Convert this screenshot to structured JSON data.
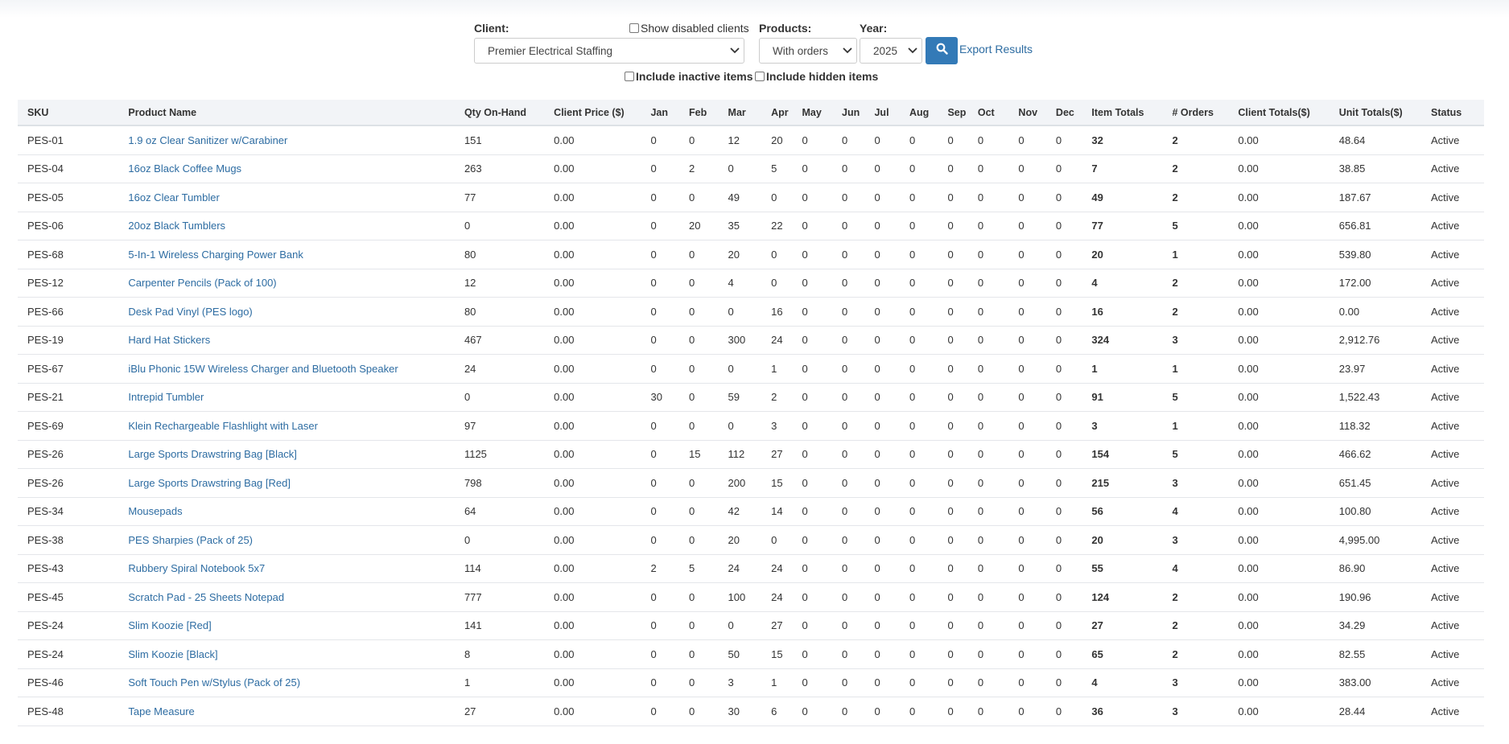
{
  "filters": {
    "client_label": "Client:",
    "client_value": "Premier Electrical Staffing",
    "show_disabled_label": "Show disabled clients",
    "products_label": "Products:",
    "products_value": "With orders",
    "year_label": "Year:",
    "year_value": "2025",
    "export_label": "Export Results",
    "include_inactive_label": "Include inactive items",
    "include_hidden_label": "Include hidden items"
  },
  "table": {
    "headers": {
      "sku": "SKU",
      "name": "Product Name",
      "qty": "Qty On-Hand",
      "price": "Client Price ($)",
      "jan": "Jan",
      "feb": "Feb",
      "mar": "Mar",
      "apr": "Apr",
      "may": "May",
      "jun": "Jun",
      "jul": "Jul",
      "aug": "Aug",
      "sep": "Sep",
      "oct": "Oct",
      "nov": "Nov",
      "dec": "Dec",
      "item_totals": "Item Totals",
      "orders": "# Orders",
      "client_totals": "Client Totals($)",
      "unit_totals": "Unit Totals($)",
      "status": "Status"
    },
    "rows": [
      {
        "sku": "PES-01",
        "name": "1.9 oz Clear Sanitizer w/Carabiner",
        "qty": "151",
        "price": "0.00",
        "jan": "0",
        "feb": "0",
        "mar": "12",
        "apr": "20",
        "may": "0",
        "jun": "0",
        "jul": "0",
        "aug": "0",
        "sep": "0",
        "oct": "0",
        "nov": "0",
        "dec": "0",
        "item_totals": "32",
        "orders": "2",
        "client_totals": "0.00",
        "unit_totals": "48.64",
        "status": "Active"
      },
      {
        "sku": "PES-04",
        "name": "16oz Black Coffee Mugs",
        "qty": "263",
        "price": "0.00",
        "jan": "0",
        "feb": "2",
        "mar": "0",
        "apr": "5",
        "may": "0",
        "jun": "0",
        "jul": "0",
        "aug": "0",
        "sep": "0",
        "oct": "0",
        "nov": "0",
        "dec": "0",
        "item_totals": "7",
        "orders": "2",
        "client_totals": "0.00",
        "unit_totals": "38.85",
        "status": "Active"
      },
      {
        "sku": "PES-05",
        "name": "16oz Clear Tumbler",
        "qty": "77",
        "price": "0.00",
        "jan": "0",
        "feb": "0",
        "mar": "49",
        "apr": "0",
        "may": "0",
        "jun": "0",
        "jul": "0",
        "aug": "0",
        "sep": "0",
        "oct": "0",
        "nov": "0",
        "dec": "0",
        "item_totals": "49",
        "orders": "2",
        "client_totals": "0.00",
        "unit_totals": "187.67",
        "status": "Active"
      },
      {
        "sku": "PES-06",
        "name": "20oz Black Tumblers",
        "qty": "0",
        "price": "0.00",
        "jan": "0",
        "feb": "20",
        "mar": "35",
        "apr": "22",
        "may": "0",
        "jun": "0",
        "jul": "0",
        "aug": "0",
        "sep": "0",
        "oct": "0",
        "nov": "0",
        "dec": "0",
        "item_totals": "77",
        "orders": "5",
        "client_totals": "0.00",
        "unit_totals": "656.81",
        "status": "Active"
      },
      {
        "sku": "PES-68",
        "name": "5-In-1 Wireless Charging Power Bank",
        "qty": "80",
        "price": "0.00",
        "jan": "0",
        "feb": "0",
        "mar": "20",
        "apr": "0",
        "may": "0",
        "jun": "0",
        "jul": "0",
        "aug": "0",
        "sep": "0",
        "oct": "0",
        "nov": "0",
        "dec": "0",
        "item_totals": "20",
        "orders": "1",
        "client_totals": "0.00",
        "unit_totals": "539.80",
        "status": "Active"
      },
      {
        "sku": "PES-12",
        "name": "Carpenter Pencils (Pack of 100)",
        "qty": "12",
        "price": "0.00",
        "jan": "0",
        "feb": "0",
        "mar": "4",
        "apr": "0",
        "may": "0",
        "jun": "0",
        "jul": "0",
        "aug": "0",
        "sep": "0",
        "oct": "0",
        "nov": "0",
        "dec": "0",
        "item_totals": "4",
        "orders": "2",
        "client_totals": "0.00",
        "unit_totals": "172.00",
        "status": "Active"
      },
      {
        "sku": "PES-66",
        "name": "Desk Pad Vinyl (PES logo)",
        "qty": "80",
        "price": "0.00",
        "jan": "0",
        "feb": "0",
        "mar": "0",
        "apr": "16",
        "may": "0",
        "jun": "0",
        "jul": "0",
        "aug": "0",
        "sep": "0",
        "oct": "0",
        "nov": "0",
        "dec": "0",
        "item_totals": "16",
        "orders": "2",
        "client_totals": "0.00",
        "unit_totals": "0.00",
        "status": "Active"
      },
      {
        "sku": "PES-19",
        "name": "Hard Hat Stickers",
        "qty": "467",
        "price": "0.00",
        "jan": "0",
        "feb": "0",
        "mar": "300",
        "apr": "24",
        "may": "0",
        "jun": "0",
        "jul": "0",
        "aug": "0",
        "sep": "0",
        "oct": "0",
        "nov": "0",
        "dec": "0",
        "item_totals": "324",
        "orders": "3",
        "client_totals": "0.00",
        "unit_totals": "2,912.76",
        "status": "Active"
      },
      {
        "sku": "PES-67",
        "name": "iBlu Phonic 15W Wireless Charger and Bluetooth Speaker",
        "qty": "24",
        "price": "0.00",
        "jan": "0",
        "feb": "0",
        "mar": "0",
        "apr": "1",
        "may": "0",
        "jun": "0",
        "jul": "0",
        "aug": "0",
        "sep": "0",
        "oct": "0",
        "nov": "0",
        "dec": "0",
        "item_totals": "1",
        "orders": "1",
        "client_totals": "0.00",
        "unit_totals": "23.97",
        "status": "Active"
      },
      {
        "sku": "PES-21",
        "name": "Intrepid Tumbler",
        "qty": "0",
        "price": "0.00",
        "jan": "30",
        "feb": "0",
        "mar": "59",
        "apr": "2",
        "may": "0",
        "jun": "0",
        "jul": "0",
        "aug": "0",
        "sep": "0",
        "oct": "0",
        "nov": "0",
        "dec": "0",
        "item_totals": "91",
        "orders": "5",
        "client_totals": "0.00",
        "unit_totals": "1,522.43",
        "status": "Active"
      },
      {
        "sku": "PES-69",
        "name": "Klein Rechargeable Flashlight with Laser",
        "qty": "97",
        "price": "0.00",
        "jan": "0",
        "feb": "0",
        "mar": "0",
        "apr": "3",
        "may": "0",
        "jun": "0",
        "jul": "0",
        "aug": "0",
        "sep": "0",
        "oct": "0",
        "nov": "0",
        "dec": "0",
        "item_totals": "3",
        "orders": "1",
        "client_totals": "0.00",
        "unit_totals": "118.32",
        "status": "Active"
      },
      {
        "sku": "PES-26",
        "name": "Large Sports Drawstring Bag [Black]",
        "qty": "1125",
        "price": "0.00",
        "jan": "0",
        "feb": "15",
        "mar": "112",
        "apr": "27",
        "may": "0",
        "jun": "0",
        "jul": "0",
        "aug": "0",
        "sep": "0",
        "oct": "0",
        "nov": "0",
        "dec": "0",
        "item_totals": "154",
        "orders": "5",
        "client_totals": "0.00",
        "unit_totals": "466.62",
        "status": "Active"
      },
      {
        "sku": "PES-26",
        "name": "Large Sports Drawstring Bag [Red]",
        "qty": "798",
        "price": "0.00",
        "jan": "0",
        "feb": "0",
        "mar": "200",
        "apr": "15",
        "may": "0",
        "jun": "0",
        "jul": "0",
        "aug": "0",
        "sep": "0",
        "oct": "0",
        "nov": "0",
        "dec": "0",
        "item_totals": "215",
        "orders": "3",
        "client_totals": "0.00",
        "unit_totals": "651.45",
        "status": "Active"
      },
      {
        "sku": "PES-34",
        "name": "Mousepads",
        "qty": "64",
        "price": "0.00",
        "jan": "0",
        "feb": "0",
        "mar": "42",
        "apr": "14",
        "may": "0",
        "jun": "0",
        "jul": "0",
        "aug": "0",
        "sep": "0",
        "oct": "0",
        "nov": "0",
        "dec": "0",
        "item_totals": "56",
        "orders": "4",
        "client_totals": "0.00",
        "unit_totals": "100.80",
        "status": "Active"
      },
      {
        "sku": "PES-38",
        "name": "PES Sharpies (Pack of 25)",
        "qty": "0",
        "price": "0.00",
        "jan": "0",
        "feb": "0",
        "mar": "20",
        "apr": "0",
        "may": "0",
        "jun": "0",
        "jul": "0",
        "aug": "0",
        "sep": "0",
        "oct": "0",
        "nov": "0",
        "dec": "0",
        "item_totals": "20",
        "orders": "3",
        "client_totals": "0.00",
        "unit_totals": "4,995.00",
        "status": "Active"
      },
      {
        "sku": "PES-43",
        "name": "Rubbery Spiral Notebook 5x7",
        "qty": "114",
        "price": "0.00",
        "jan": "2",
        "feb": "5",
        "mar": "24",
        "apr": "24",
        "may": "0",
        "jun": "0",
        "jul": "0",
        "aug": "0",
        "sep": "0",
        "oct": "0",
        "nov": "0",
        "dec": "0",
        "item_totals": "55",
        "orders": "4",
        "client_totals": "0.00",
        "unit_totals": "86.90",
        "status": "Active"
      },
      {
        "sku": "PES-45",
        "name": "Scratch Pad - 25 Sheets Notepad",
        "qty": "777",
        "price": "0.00",
        "jan": "0",
        "feb": "0",
        "mar": "100",
        "apr": "24",
        "may": "0",
        "jun": "0",
        "jul": "0",
        "aug": "0",
        "sep": "0",
        "oct": "0",
        "nov": "0",
        "dec": "0",
        "item_totals": "124",
        "orders": "2",
        "client_totals": "0.00",
        "unit_totals": "190.96",
        "status": "Active"
      },
      {
        "sku": "PES-24",
        "name": "Slim Koozie [Red]",
        "qty": "141",
        "price": "0.00",
        "jan": "0",
        "feb": "0",
        "mar": "0",
        "apr": "27",
        "may": "0",
        "jun": "0",
        "jul": "0",
        "aug": "0",
        "sep": "0",
        "oct": "0",
        "nov": "0",
        "dec": "0",
        "item_totals": "27",
        "orders": "2",
        "client_totals": "0.00",
        "unit_totals": "34.29",
        "status": "Active"
      },
      {
        "sku": "PES-24",
        "name": "Slim Koozie [Black]",
        "qty": "8",
        "price": "0.00",
        "jan": "0",
        "feb": "0",
        "mar": "50",
        "apr": "15",
        "may": "0",
        "jun": "0",
        "jul": "0",
        "aug": "0",
        "sep": "0",
        "oct": "0",
        "nov": "0",
        "dec": "0",
        "item_totals": "65",
        "orders": "2",
        "client_totals": "0.00",
        "unit_totals": "82.55",
        "status": "Active"
      },
      {
        "sku": "PES-46",
        "name": "Soft Touch Pen w/Stylus (Pack of 25)",
        "qty": "1",
        "price": "0.00",
        "jan": "0",
        "feb": "0",
        "mar": "3",
        "apr": "1",
        "may": "0",
        "jun": "0",
        "jul": "0",
        "aug": "0",
        "sep": "0",
        "oct": "0",
        "nov": "0",
        "dec": "0",
        "item_totals": "4",
        "orders": "3",
        "client_totals": "0.00",
        "unit_totals": "383.00",
        "status": "Active"
      },
      {
        "sku": "PES-48",
        "name": "Tape Measure",
        "qty": "27",
        "price": "0.00",
        "jan": "0",
        "feb": "0",
        "mar": "30",
        "apr": "6",
        "may": "0",
        "jun": "0",
        "jul": "0",
        "aug": "0",
        "sep": "0",
        "oct": "0",
        "nov": "0",
        "dec": "0",
        "item_totals": "36",
        "orders": "3",
        "client_totals": "0.00",
        "unit_totals": "28.44",
        "status": "Active"
      }
    ]
  }
}
